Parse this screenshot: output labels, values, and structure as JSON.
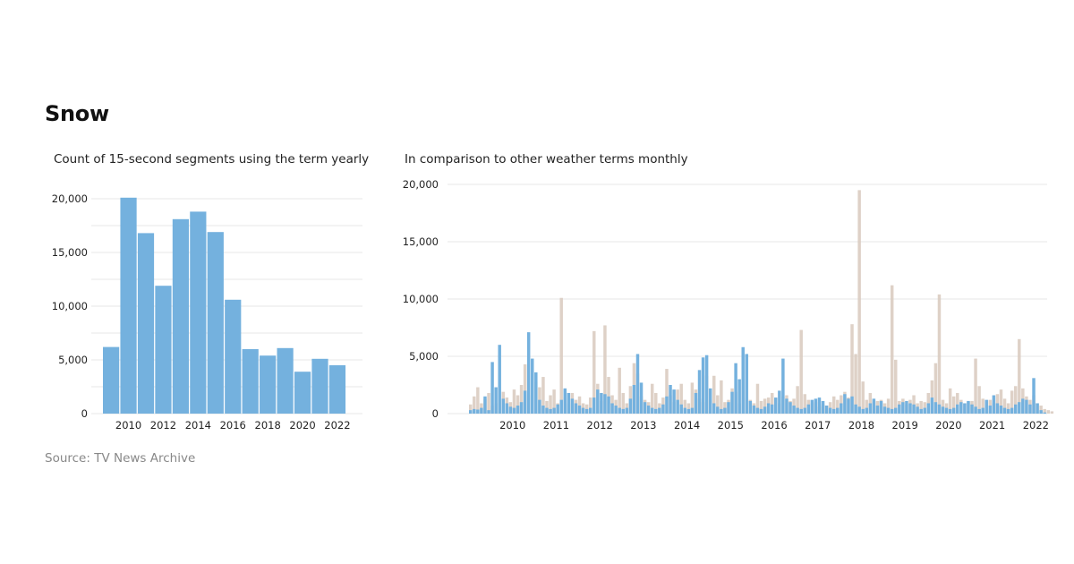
{
  "title": "Snow",
  "left_subtitle": "Count of 15-second segments using the term yearly",
  "right_subtitle": "In comparison to other weather terms monthly",
  "source": "Source: TV News Archive",
  "colors": {
    "snow": "#74b1de",
    "other": "#d8c9bd",
    "grid": "#e7e7e7"
  },
  "chart_data": [
    {
      "type": "bar",
      "categories": [
        "2009",
        "2010",
        "2011",
        "2012",
        "2013",
        "2014",
        "2015",
        "2016",
        "2017",
        "2018",
        "2019",
        "2020",
        "2021",
        "2022"
      ],
      "values": [
        6200,
        20100,
        16800,
        11900,
        18100,
        18800,
        16900,
        10600,
        6000,
        5400,
        6100,
        3900,
        5100,
        4500
      ],
      "xtick_labels": [
        "2010",
        "2012",
        "2014",
        "2016",
        "2018",
        "2020",
        "2022"
      ],
      "ytick_labels": [
        "0",
        "5,000",
        "10,000",
        "15,000",
        "20,000"
      ],
      "ylim": [
        0,
        20000
      ],
      "grid": true
    },
    {
      "type": "bar",
      "x_start": "2009-07",
      "x_end": "2022-05",
      "xtick_labels": [
        "2010",
        "2011",
        "2012",
        "2013",
        "2014",
        "2015",
        "2016",
        "2017",
        "2018",
        "2019",
        "2020",
        "2021",
        "2022"
      ],
      "ytick_labels": [
        "0",
        "5,000",
        "10,000",
        "15,000",
        "20,000"
      ],
      "ylim": [
        0,
        20000
      ],
      "grid": true,
      "series": [
        {
          "name": "Snow",
          "values": [
            300,
            400,
            350,
            500,
            1500,
            300,
            4500,
            2300,
            6000,
            1300,
            900,
            600,
            500,
            700,
            1000,
            2000,
            7100,
            4800,
            3600,
            1200,
            700,
            500,
            400,
            500,
            800,
            1200,
            2200,
            1800,
            1300,
            900,
            700,
            500,
            400,
            500,
            1400,
            2100,
            1800,
            1700,
            1500,
            900,
            700,
            500,
            400,
            500,
            1300,
            2500,
            5200,
            2700,
            1000,
            700,
            500,
            400,
            500,
            800,
            1500,
            2500,
            2100,
            1200,
            800,
            500,
            400,
            500,
            1800,
            3800,
            4900,
            5100,
            2200,
            900,
            600,
            400,
            500,
            1000,
            1900,
            4400,
            3000,
            5800,
            5200,
            1100,
            700,
            500,
            400,
            600,
            900,
            800,
            1400,
            2000,
            4800,
            1300,
            1000,
            700,
            500,
            400,
            500,
            800,
            1200,
            1300,
            1400,
            1100,
            700,
            500,
            400,
            500,
            900,
            1700,
            1300,
            1500,
            800,
            600,
            400,
            500,
            900,
            1300,
            700,
            1100,
            600,
            500,
            400,
            500,
            800,
            1000,
            1100,
            900,
            800,
            600,
            400,
            500,
            900,
            1400,
            1000,
            800,
            600,
            500,
            400,
            500,
            800,
            1000,
            900,
            1100,
            800,
            600,
            400,
            500,
            1200,
            700,
            1600,
            900,
            700,
            500,
            400,
            500,
            800,
            1000,
            1300,
            1200,
            800,
            3100,
            900,
            300,
            100
          ]
        },
        {
          "name": "",
          "values": [
            800,
            1500,
            2300,
            900,
            1300,
            1800,
            700,
            900,
            1200,
            1900,
            1400,
            1000,
            2100,
            1600,
            2500,
            4300,
            1600,
            1200,
            2800,
            2300,
            3200,
            1100,
            1600,
            2100,
            900,
            10100,
            1400,
            900,
            1800,
            1200,
            1500,
            900,
            800,
            1400,
            7200,
            2600,
            1100,
            7700,
            3200,
            1600,
            1200,
            4000,
            1800,
            900,
            2400,
            4400,
            3500,
            1500,
            1200,
            1000,
            2600,
            1800,
            900,
            1400,
            3900,
            1600,
            1000,
            2100,
            2600,
            1200,
            900,
            2700,
            2100,
            1300,
            1000,
            3300,
            1200,
            3300,
            1600,
            2900,
            1000,
            1200,
            2200,
            1900,
            900,
            2000,
            1400,
            1200,
            900,
            2600,
            1100,
            1300,
            1400,
            1800,
            1200,
            900,
            1500,
            1600,
            1100,
            1300,
            2400,
            7300,
            1700,
            1200,
            900,
            1000,
            600,
            800,
            700,
            1000,
            1500,
            1200,
            1600,
            1900,
            1400,
            7800,
            5200,
            19500,
            2800,
            1200,
            1800,
            1000,
            1100,
            1200,
            900,
            1300,
            11200,
            4700,
            1100,
            1300,
            800,
            1200,
            1600,
            900,
            1100,
            1000,
            1800,
            2900,
            4400,
            10400,
            1200,
            900,
            2200,
            1500,
            1800,
            1200,
            900,
            1000,
            1100,
            4800,
            2400,
            1300,
            900,
            1200,
            900,
            1700,
            2100,
            1300,
            900,
            2000,
            2400,
            6500,
            2200,
            1500,
            1200,
            1600,
            900,
            700,
            400,
            300,
            200
          ]
        }
      ]
    }
  ]
}
